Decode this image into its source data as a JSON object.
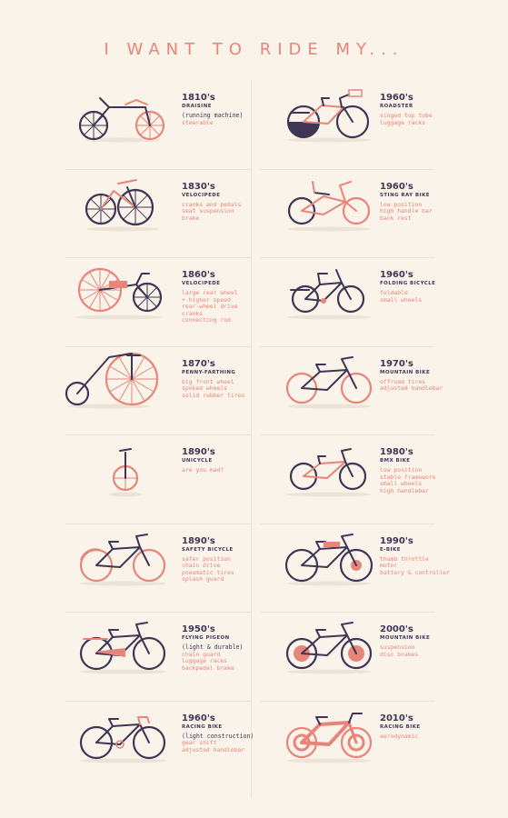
{
  "title": "I WANT TO RIDE MY...",
  "colors": {
    "background": "#f9f3e9",
    "dark": "#3f3656",
    "coral": "#e8857a",
    "shadow": "#ece3d6"
  },
  "bikes": [
    {
      "year": "1810's",
      "name": "DRAISINE",
      "note": "(running machine)",
      "features": [
        "steerable"
      ],
      "icon": "draisine-icon"
    },
    {
      "year": "1960's",
      "name": "ROADSTER",
      "note": "",
      "features": [
        "singed top tube",
        "luggage racks"
      ],
      "icon": "roadster-bike-icon"
    },
    {
      "year": "1830's",
      "name": "VELOCIPEDE",
      "note": "",
      "features": [
        "cranks and pedals",
        "seat suspension",
        "brake"
      ],
      "icon": "velocipede-icon"
    },
    {
      "year": "1960's",
      "name": "STING RAY BIKE",
      "note": "",
      "features": [
        "low position",
        "high handle bar",
        "back rest"
      ],
      "icon": "sting-ray-bike-icon"
    },
    {
      "year": "1860's",
      "name": "VELOCIPEDE",
      "note": "",
      "features": [
        "large rear wheel",
        "+ higher speed",
        "rear-wheel drive",
        "cranks",
        "connecting rod"
      ],
      "icon": "large-wheel-velocipede-icon"
    },
    {
      "year": "1960's",
      "name": "FOLDING BICYCLE",
      "note": "",
      "features": [
        "foldable",
        "small wheels"
      ],
      "icon": "folding-bicycle-icon"
    },
    {
      "year": "1870's",
      "name": "PENNY-FARTHING",
      "note": "",
      "features": [
        "big front wheel",
        "spoked wheels",
        "solid rubber tires"
      ],
      "icon": "penny-farthing-icon"
    },
    {
      "year": "1970's",
      "name": "MOUNTAIN BIKE",
      "note": "",
      "features": [
        "offroad tires",
        "adjusted handlebar"
      ],
      "icon": "mountain-bike-1970s-icon"
    },
    {
      "year": "1890's",
      "name": "UNICYCLE",
      "note": "",
      "features": [
        "are you mad?"
      ],
      "icon": "unicycle-icon"
    },
    {
      "year": "1980's",
      "name": "BMX BIKE",
      "note": "",
      "features": [
        "low position",
        "stable framework",
        "small wheels",
        "high handlebar"
      ],
      "icon": "bmx-bike-icon"
    },
    {
      "year": "1890's",
      "name": "SAFETY BICYCLE",
      "note": "",
      "features": [
        "safer position",
        "chain drive",
        "pneumatic tires",
        "splash guard"
      ],
      "icon": "safety-bicycle-icon"
    },
    {
      "year": "1990's",
      "name": "E-BIKE",
      "note": "",
      "features": [
        "thumb throttle",
        "motor",
        "battery & controller"
      ],
      "icon": "e-bike-icon"
    },
    {
      "year": "1950's",
      "name": "FLYING PIGEON",
      "note": "(light & durable)",
      "features": [
        "chain guard",
        "luggage racks",
        "backpedal brake"
      ],
      "icon": "flying-pigeon-bike-icon"
    },
    {
      "year": "2000's",
      "name": "MOUNTAIN BIKE",
      "note": "",
      "features": [
        "suspension",
        "disc brakes"
      ],
      "icon": "mountain-bike-2000s-icon"
    },
    {
      "year": "1960's",
      "name": "RACING BIKE",
      "note": "(light construction)",
      "features": [
        "gear shift",
        "adjusted handlebar"
      ],
      "icon": "racing-bike-1960s-icon"
    },
    {
      "year": "2010's",
      "name": "RACING BIKE",
      "note": "",
      "features": [
        "aerodynamic"
      ],
      "icon": "racing-bike-2010s-icon"
    }
  ]
}
